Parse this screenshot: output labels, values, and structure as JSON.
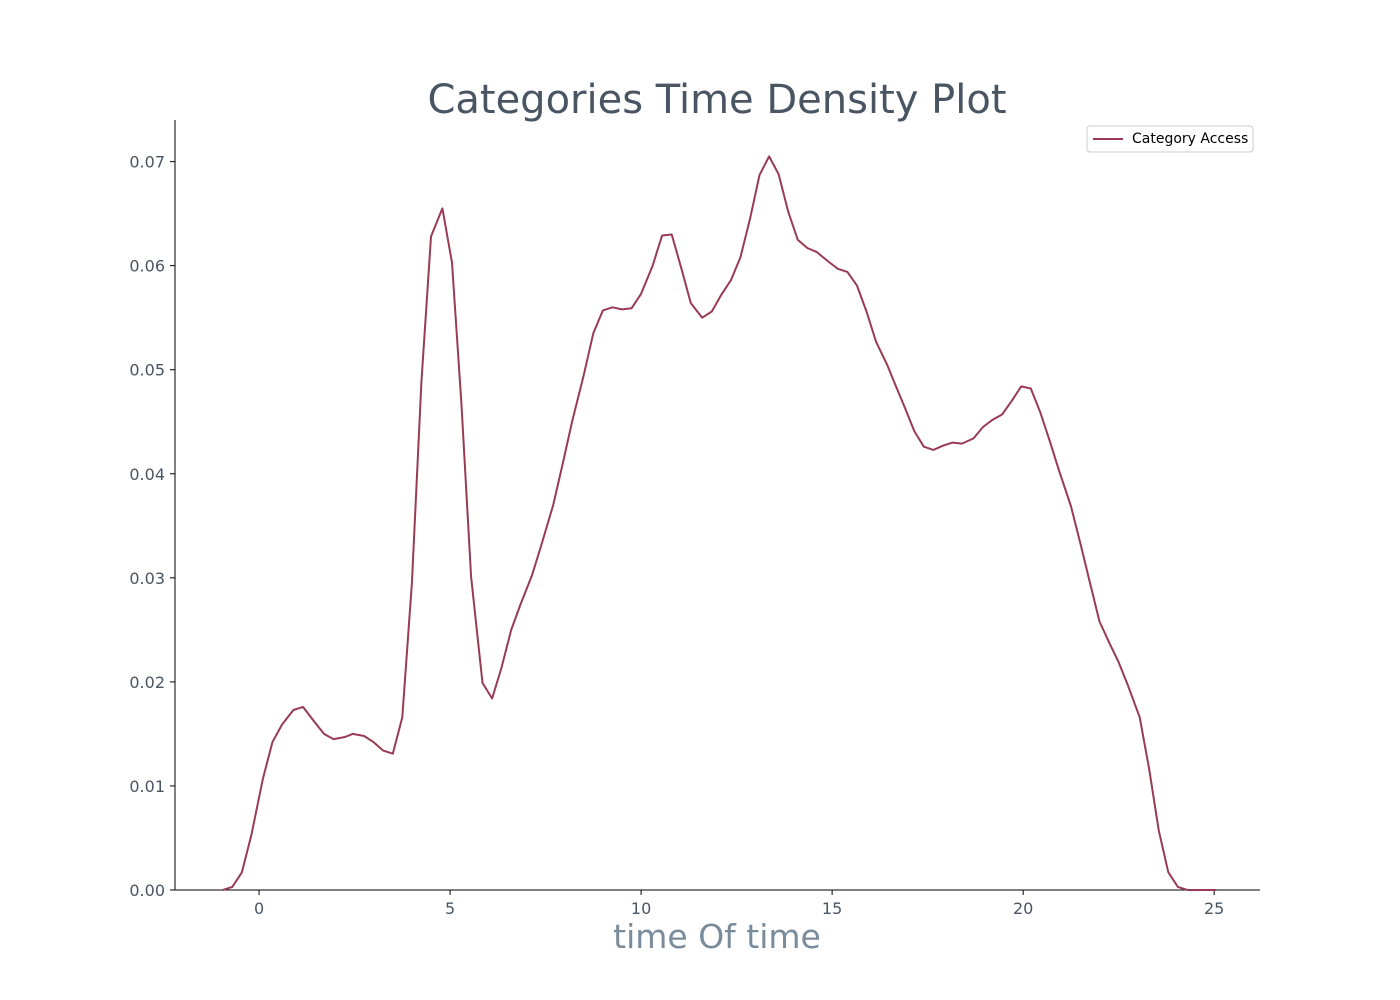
{
  "chart_data": {
    "type": "line",
    "title": "Categories Time Density Plot",
    "xlabel": "time Of time",
    "ylabel": "",
    "xlim": [
      -2.2,
      26.2
    ],
    "ylim": [
      0,
      0.074
    ],
    "xticks": [
      0,
      5,
      10,
      15,
      20,
      25
    ],
    "yticks": [
      0.0,
      0.01,
      0.02,
      0.03,
      0.04,
      0.05,
      0.06,
      0.07
    ],
    "xtick_labels": [
      "0",
      "5",
      "10",
      "15",
      "20",
      "25"
    ],
    "ytick_labels": [
      "0.00",
      "0.01",
      "0.02",
      "0.03",
      "0.04",
      "0.05",
      "0.06",
      "0.07"
    ],
    "legend_position": "top-right",
    "grid": false,
    "colors": {
      "series": "#9a3b55",
      "title": "#4a5563",
      "xlabel": "#7a8b9c",
      "ticks": "#4a5563"
    },
    "series": [
      {
        "name": "Category Access",
        "x": [
          -0.95,
          -0.7,
          -0.45,
          -0.2,
          0.1,
          0.35,
          0.6,
          0.9,
          1.15,
          1.4,
          1.7,
          1.95,
          2.25,
          2.45,
          2.75,
          3.0,
          3.25,
          3.5,
          3.75,
          4.0,
          4.25,
          4.5,
          4.8,
          5.05,
          5.3,
          5.55,
          5.85,
          6.1,
          6.35,
          6.6,
          6.85,
          7.15,
          7.4,
          7.7,
          7.95,
          8.2,
          8.5,
          8.75,
          9.0,
          9.25,
          9.5,
          9.75,
          10.0,
          10.3,
          10.55,
          10.8,
          11.05,
          11.3,
          11.6,
          11.85,
          12.1,
          12.35,
          12.6,
          12.85,
          13.1,
          13.35,
          13.6,
          13.85,
          14.1,
          14.35,
          14.6,
          14.9,
          15.15,
          15.4,
          15.65,
          15.9,
          16.15,
          16.45,
          16.65,
          16.9,
          17.15,
          17.4,
          17.65,
          17.9,
          18.15,
          18.4,
          18.7,
          18.95,
          19.2,
          19.45,
          19.7,
          19.95,
          20.2,
          20.45,
          20.7,
          20.95,
          21.25,
          21.5,
          21.75,
          22.0,
          22.25,
          22.5,
          22.75,
          23.05,
          23.3,
          23.55,
          23.8,
          24.05,
          24.3,
          24.55,
          24.8,
          25.05
        ],
        "values": [
          0.0,
          0.0003,
          0.0017,
          0.0053,
          0.0107,
          0.0142,
          0.0159,
          0.0173,
          0.0176,
          0.0164,
          0.015,
          0.0145,
          0.0147,
          0.015,
          0.0148,
          0.0142,
          0.0134,
          0.0131,
          0.0166,
          0.0295,
          0.0488,
          0.0628,
          0.0655,
          0.0603,
          0.0466,
          0.0301,
          0.0199,
          0.0184,
          0.0214,
          0.025,
          0.0275,
          0.0303,
          0.0333,
          0.037,
          0.041,
          0.0451,
          0.0495,
          0.0535,
          0.0557,
          0.056,
          0.0558,
          0.0559,
          0.0573,
          0.06,
          0.0629,
          0.063,
          0.0598,
          0.0564,
          0.055,
          0.0556,
          0.0572,
          0.0586,
          0.0608,
          0.0645,
          0.0687,
          0.0705,
          0.0688,
          0.0652,
          0.0625,
          0.0617,
          0.0613,
          0.0604,
          0.0597,
          0.0594,
          0.0581,
          0.0556,
          0.0527,
          0.0504,
          0.0486,
          0.0464,
          0.0441,
          0.0426,
          0.0423,
          0.0427,
          0.043,
          0.0429,
          0.0434,
          0.0445,
          0.0452,
          0.0457,
          0.047,
          0.0484,
          0.0482,
          0.0459,
          0.0431,
          0.0402,
          0.0369,
          0.0333,
          0.0295,
          0.0258,
          0.0238,
          0.0219,
          0.0196,
          0.0166,
          0.0116,
          0.0057,
          0.0017,
          0.0003,
          0.0,
          0.0,
          0.0,
          0.0
        ]
      }
    ]
  }
}
